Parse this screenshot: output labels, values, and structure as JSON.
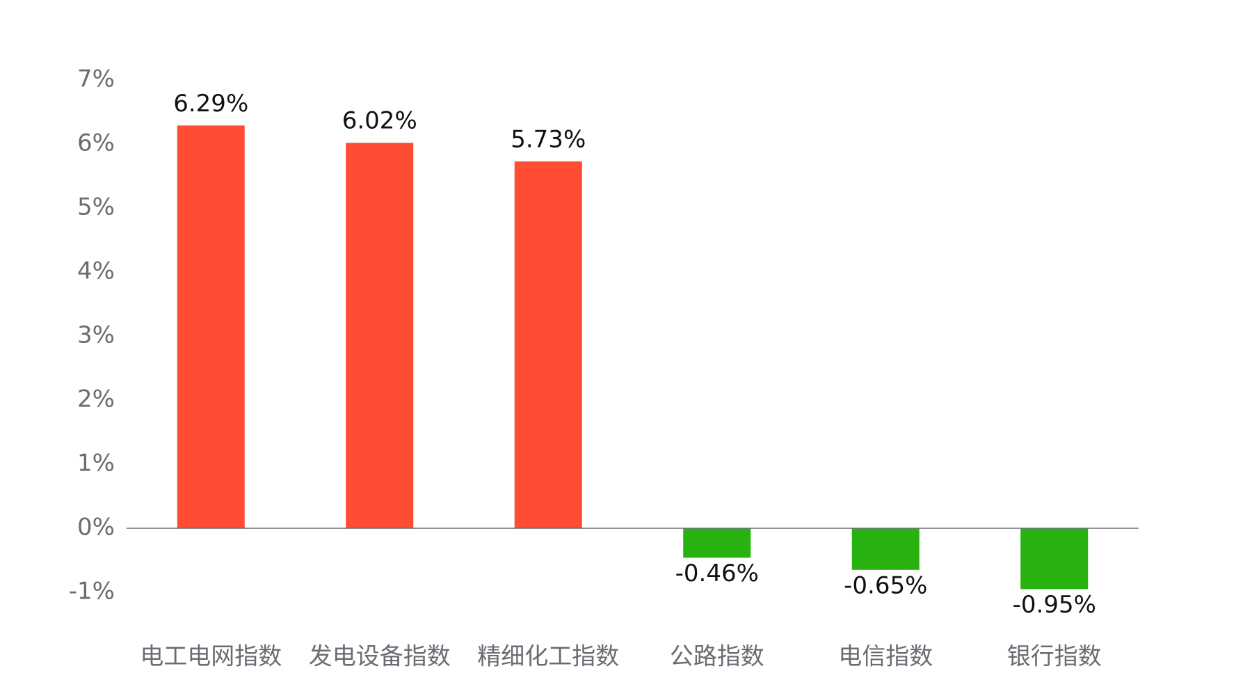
{
  "chart_data": {
    "type": "bar",
    "categories": [
      "电工电网指数",
      "发电设备指数",
      "精细化工指数",
      "公路指数",
      "电信指数",
      "银行指数"
    ],
    "values": [
      6.29,
      6.02,
      5.73,
      -0.46,
      -0.65,
      -0.95
    ],
    "value_labels": [
      "6.29%",
      "6.02%",
      "5.73%",
      "-0.46%",
      "-0.65%",
      "-0.95%"
    ],
    "colors": [
      "#ff4d33",
      "#ff4d33",
      "#ff4d33",
      "#27b20f",
      "#27b20f",
      "#27b20f"
    ],
    "ylim": [
      -1,
      7
    ],
    "yticks": [
      {
        "value": -1,
        "label": "-1%"
      },
      {
        "value": 0,
        "label": "0%"
      },
      {
        "value": 1,
        "label": "1%"
      },
      {
        "value": 2,
        "label": "2%"
      },
      {
        "value": 3,
        "label": "3%"
      },
      {
        "value": 4,
        "label": "4%"
      },
      {
        "value": 5,
        "label": "5%"
      },
      {
        "value": 6,
        "label": "6%"
      },
      {
        "value": 7,
        "label": "7%"
      }
    ],
    "grid": false
  }
}
